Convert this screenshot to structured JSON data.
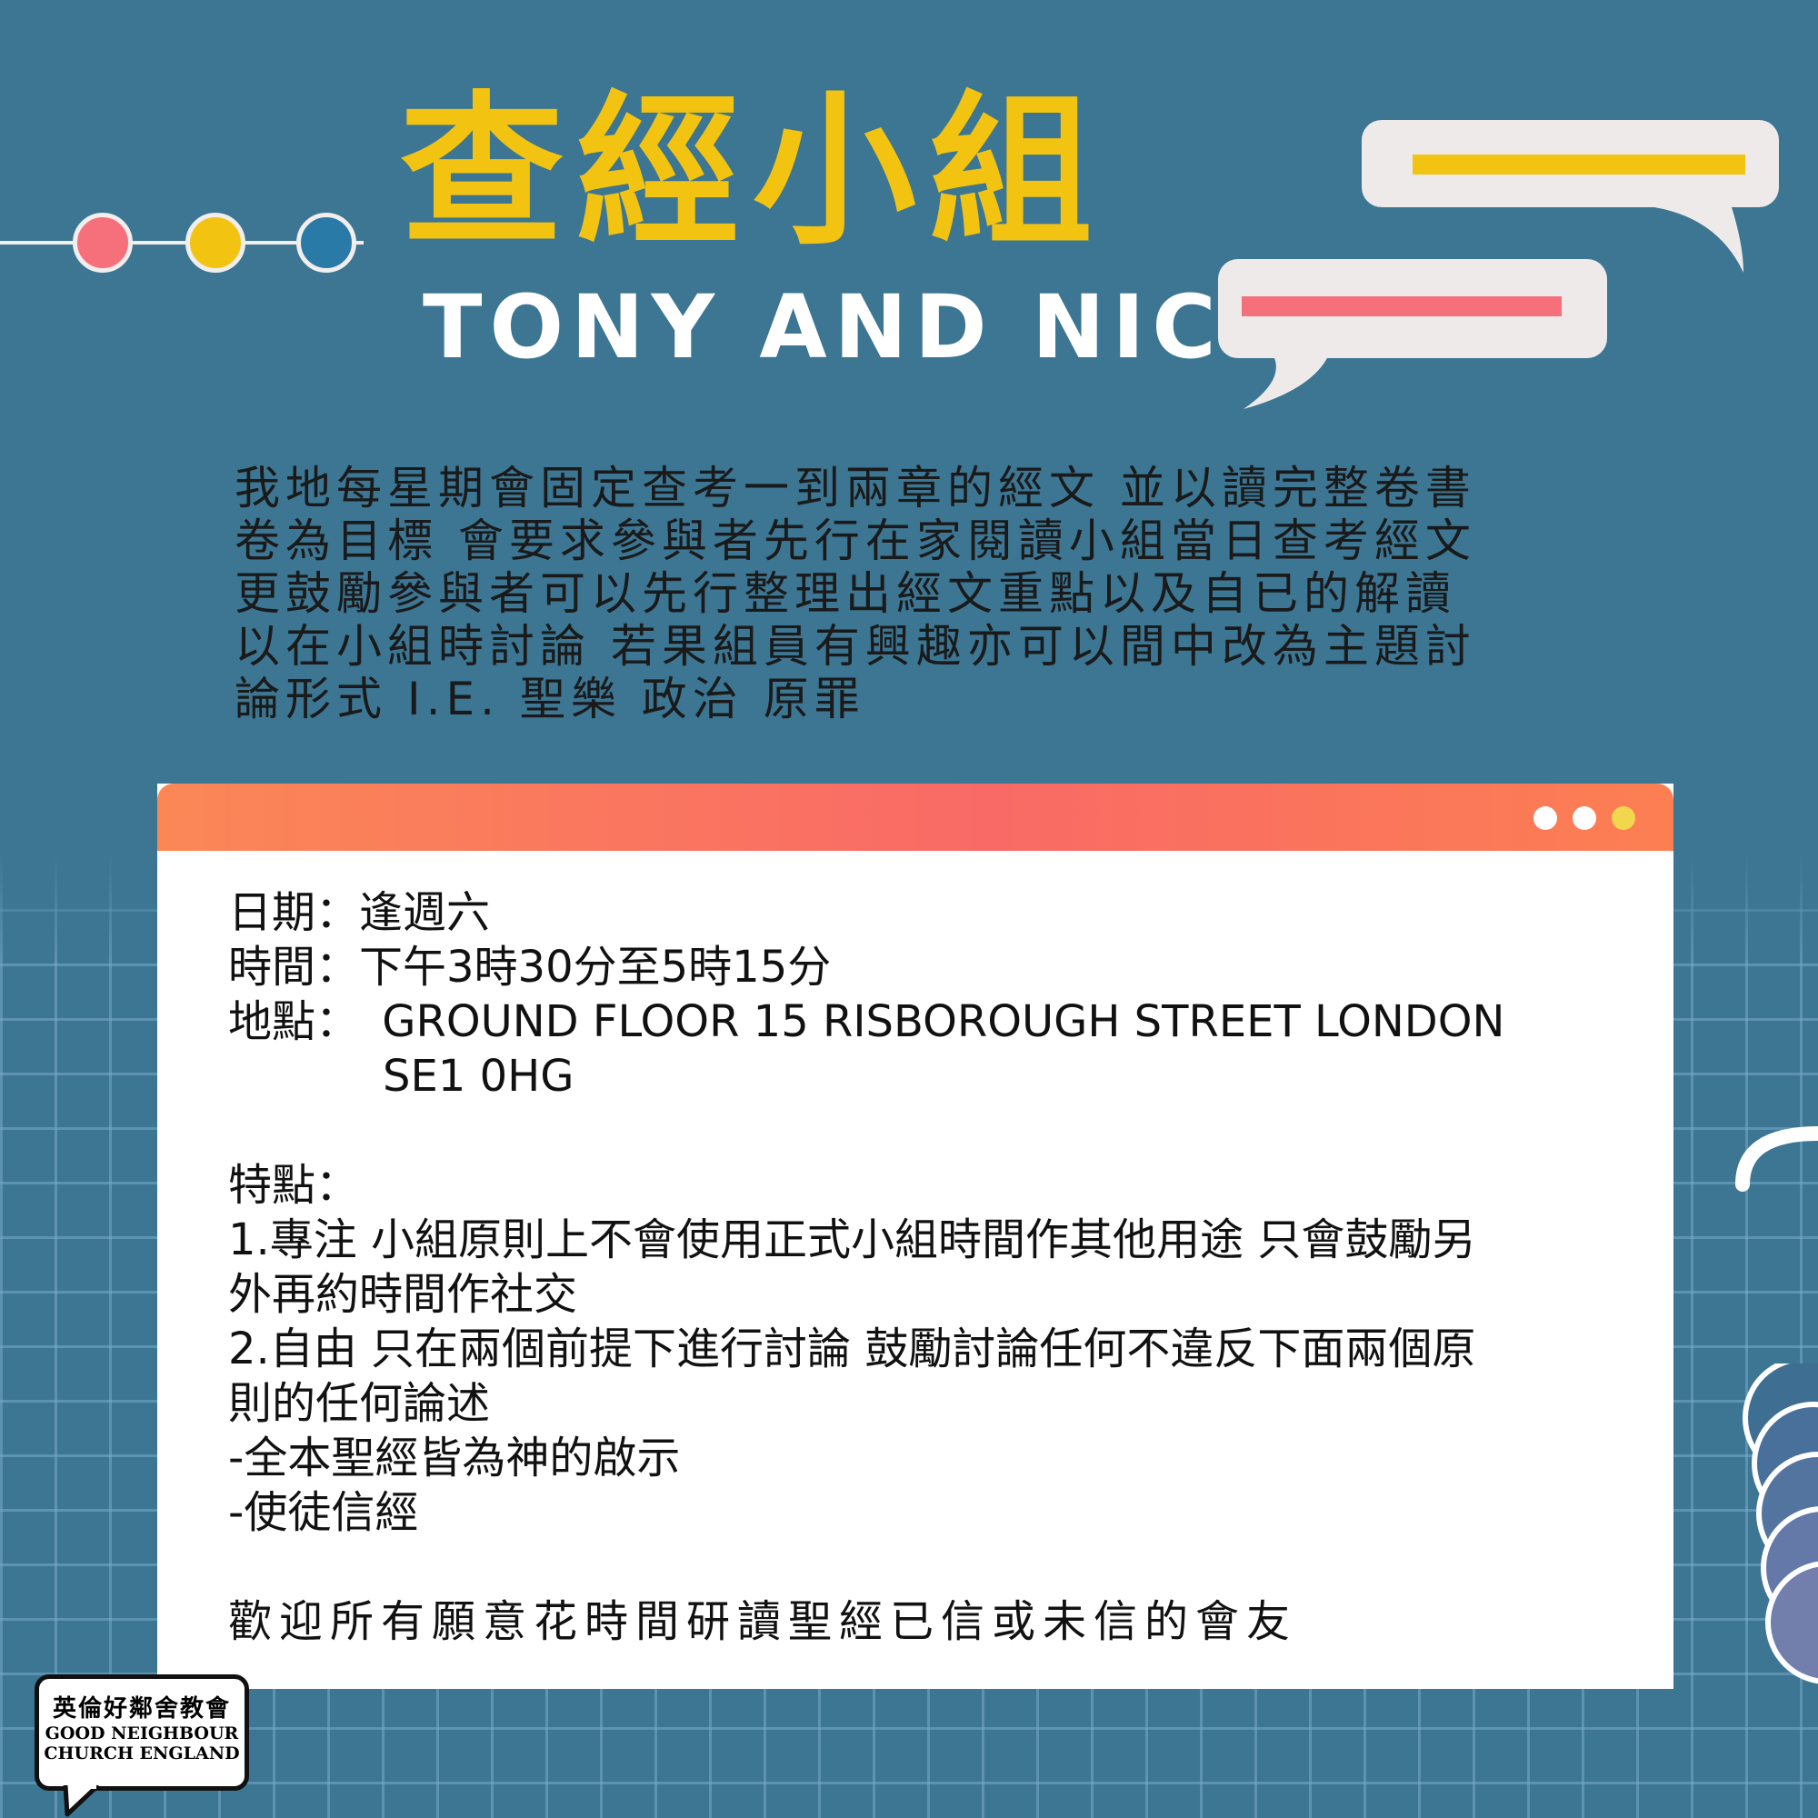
{
  "header": {
    "title": "查經小組",
    "subtitle": "TONY AND NICK"
  },
  "description": {
    "lines": [
      "我地每星期會固定查考一到兩章的經文 並以讀完整卷書",
      "卷為目標 會要求參與者先行在家閱讀小組當日查考經文",
      "更鼓勵參與者可以先行整理出經文重點以及自已的解讀",
      "以在小組時討論 若果組員有興趣亦可以間中改為主題討",
      "論形式 I.E. 聖樂 政治 原罪"
    ]
  },
  "details": {
    "date": "日期：逢週六",
    "time": "時間：下午3時30分至5時15分",
    "location_label": "地點：",
    "location_line1": "GROUND FLOOR 15 RISBOROUGH STREET LONDON",
    "location_line2": "SE1 0HG",
    "features_label": "特點：",
    "feature1_line1": "1.專注 小組原則上不會使用正式小組時間作其他用途 只會鼓勵另",
    "feature1_line2": "外再約時間作社交",
    "feature2_line1": "2.自由 只在兩個前提下進行討論 鼓勵討論任何不違反下面兩個原",
    "feature2_line2": "則的任何論述",
    "principle1": "-全本聖經皆為神的啟示",
    "principle2": "-使徒信經",
    "closing": "歡迎所有願意花時間研讀聖經已信或未信的會友"
  },
  "logo": {
    "chinese": "英倫好鄰舍教會",
    "english_line1": "GOOD NEIGHBOUR",
    "english_line2": "CHURCH ENGLAND"
  },
  "colors": {
    "background": "#3c7693",
    "title_yellow": "#f2c311",
    "pink": "#f5707a",
    "blue_dot": "#2a7aa8",
    "window_bar": "#f96a66"
  }
}
